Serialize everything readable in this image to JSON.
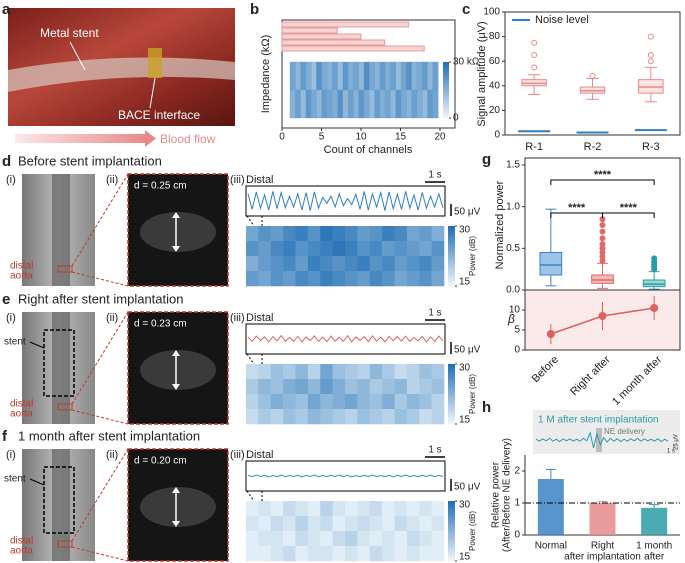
{
  "panel_labels": [
    "a",
    "b",
    "c",
    "d",
    "e",
    "f",
    "g",
    "h"
  ],
  "a": {
    "stent": "Metal stent",
    "interface": "BACE interface",
    "flow": "Blood flow"
  },
  "rows": [
    {
      "title": "Before stent implantation",
      "i": "(i)",
      "ii": "(ii)",
      "iii": "(iii)",
      "d": "d = 0.25 cm",
      "distal": "Distal",
      "time": "1 s",
      "amp": "50 μV",
      "aorta": [
        "distal",
        "aorta"
      ],
      "trace_color": "#2f7fc1",
      "trace": [
        30,
        -35,
        38,
        -30,
        25,
        -38,
        40,
        -32,
        35,
        -28,
        20,
        -25,
        30,
        -38,
        35,
        -40,
        38,
        -30,
        15,
        -10,
        20,
        -25,
        30,
        -20,
        10,
        -15,
        28,
        -35,
        40,
        -38,
        30,
        -25,
        35,
        -40,
        38,
        -32,
        28,
        -35,
        40,
        -30,
        25,
        -38,
        36,
        -30,
        20,
        -25,
        30,
        -28
      ],
      "clim": [
        15,
        30
      ],
      "cticks": [
        30,
        15
      ],
      "clabel": "Power (dB)",
      "heatmap": [
        [
          24,
          26,
          25,
          27,
          28,
          26,
          29,
          28,
          27,
          25,
          26,
          28,
          27,
          24,
          25,
          23
        ],
        [
          26,
          25,
          27,
          28,
          26,
          27,
          28,
          29,
          28,
          26,
          27,
          25,
          26,
          25,
          24,
          26
        ],
        [
          23,
          25,
          26,
          27,
          25,
          28,
          27,
          26,
          27,
          28,
          26,
          27,
          25,
          26,
          27,
          25
        ],
        [
          25,
          24,
          26,
          25,
          27,
          26,
          28,
          27,
          26,
          25,
          27,
          26,
          24,
          25,
          26,
          24
        ]
      ]
    },
    {
      "title": "Right after stent implantation",
      "i": "(i)",
      "ii": "(ii)",
      "iii": "(iii)",
      "d": "d = 0.23 cm",
      "distal": "Distal",
      "time": "1 s",
      "amp": "50 μV",
      "aorta": [
        "distal",
        "aorta"
      ],
      "stent": "stent",
      "trace_color": "#e06060",
      "trace": [
        8,
        -10,
        12,
        -6,
        9,
        -12,
        10,
        -8,
        14,
        -10,
        6,
        -9,
        11,
        -12,
        9,
        -7,
        13,
        -10,
        8,
        -11,
        12,
        -9,
        7,
        -10,
        14,
        -12,
        9,
        -6,
        10,
        -11,
        13,
        -9,
        8,
        -12,
        11,
        -7,
        10,
        -9,
        12,
        -10,
        6,
        -8,
        11,
        -12,
        9,
        -10,
        12,
        -8
      ],
      "clim": [
        15,
        30
      ],
      "cticks": [
        30,
        15
      ],
      "clabel": "Power (dB)",
      "heatmap": [
        [
          18,
          19,
          21,
          20,
          22,
          19,
          24,
          21,
          20,
          19,
          22,
          20,
          18,
          19,
          21,
          20
        ],
        [
          20,
          22,
          21,
          23,
          24,
          22,
          25,
          23,
          21,
          22,
          20,
          21,
          22,
          19,
          20,
          21
        ],
        [
          19,
          21,
          23,
          22,
          21,
          24,
          22,
          23,
          24,
          22,
          21,
          23,
          20,
          22,
          21,
          19
        ],
        [
          18,
          20,
          19,
          21,
          20,
          22,
          21,
          20,
          19,
          21,
          20,
          19,
          21,
          20,
          18,
          19
        ]
      ]
    },
    {
      "title": "1 month after stent implantation",
      "i": "(i)",
      "ii": "(ii)",
      "iii": "(iii)",
      "d": "d = 0.20 cm",
      "distal": "Distal",
      "time": "1 s",
      "amp": "50 μV",
      "aorta": [
        "distal",
        "aorta"
      ],
      "stent": "stent",
      "trace_color": "#2a9ca6",
      "trace": [
        3,
        -3,
        4,
        -2,
        3,
        -4,
        2,
        -3,
        4,
        -3,
        2,
        -2,
        3,
        -4,
        3,
        -2,
        4,
        -3,
        2,
        -3,
        3,
        -2,
        4,
        -3,
        3,
        -4,
        2,
        -3,
        3,
        -2,
        4,
        -3,
        2,
        -3,
        3,
        -4,
        3,
        -2,
        4,
        -3,
        2,
        -3,
        3,
        -2,
        4,
        -3,
        3,
        -2
      ],
      "clim": [
        15,
        30
      ],
      "cticks": [
        30,
        15
      ],
      "clabel": "Power (dB)",
      "heatmap": [
        [
          16,
          17,
          16,
          18,
          17,
          16,
          19,
          17,
          16,
          17,
          18,
          16,
          17,
          16,
          17,
          16
        ],
        [
          17,
          16,
          18,
          17,
          19,
          17,
          18,
          16,
          17,
          18,
          17,
          16,
          18,
          17,
          16,
          17
        ],
        [
          16,
          17,
          17,
          16,
          18,
          17,
          16,
          18,
          19,
          17,
          16,
          17,
          16,
          18,
          17,
          16
        ],
        [
          16,
          16,
          17,
          18,
          16,
          17,
          17,
          16,
          17,
          16,
          18,
          17,
          16,
          17,
          16,
          16
        ]
      ]
    }
  ],
  "chart_data": [
    {
      "type": "hbar",
      "values": [
        16,
        7,
        10,
        13,
        18
      ],
      "color": "#f7d4d4",
      "edge": "#e79c9c",
      "xlim": [
        0,
        20
      ],
      "xticks": [
        0,
        5,
        10,
        15,
        20
      ],
      "xlabel": "Count of channels",
      "ylabel": "Impedance (kΩ)"
    },
    {
      "type": "heatmap",
      "values": [
        [
          18,
          14,
          20,
          16,
          12,
          22,
          17,
          15,
          19,
          13,
          21,
          16,
          18,
          14,
          23,
          17,
          15,
          20,
          16,
          19,
          13,
          18,
          22,
          15,
          17,
          20,
          14,
          19
        ],
        [
          15,
          19,
          13,
          21,
          17,
          14,
          20,
          18,
          16,
          22,
          14,
          19,
          15,
          21,
          17,
          13,
          20,
          16,
          18,
          14,
          21,
          17,
          15,
          19,
          16,
          13,
          20,
          18
        ]
      ],
      "clim": [
        0,
        30
      ],
      "cticks": [
        {
          "value": 30,
          "label": "30 kΩ"
        },
        0
      ]
    },
    {
      "type": "box",
      "categories": [
        "R-1",
        "R-2",
        "R-3"
      ],
      "color": "#e88a8a",
      "fill": "#fbe3e3",
      "boxes": [
        {
          "min": 33,
          "q1": 40,
          "median": 42,
          "q3": 45,
          "max": 49,
          "outliers": [
            55,
            65,
            75
          ]
        },
        {
          "min": 29,
          "q1": 34,
          "median": 36,
          "q3": 39,
          "max": 46,
          "outliers": [
            48
          ]
        },
        {
          "min": 27,
          "q1": 34,
          "median": 39,
          "q3": 45,
          "max": 55,
          "outliers": [
            60,
            65,
            80
          ]
        }
      ],
      "noise": {
        "name": "Noise level",
        "color": "#2f7fc1",
        "values": [
          3,
          2,
          4
        ]
      },
      "ylim": [
        0,
        100
      ],
      "yticks": [
        0,
        20,
        40,
        60,
        80,
        100
      ],
      "ylabel": "Signal amplitude (μV)"
    },
    {
      "type": "box",
      "categories": [
        "Before",
        "Right after",
        "1 month after"
      ],
      "colors": [
        "#3b82c4",
        "#e06a6a",
        "#2a9ca6"
      ],
      "fills": [
        "#9cc4e8",
        "#f4b8b8",
        "#9fd5d9"
      ],
      "boxes": [
        {
          "min": 0.05,
          "q1": 0.18,
          "median": 0.3,
          "q3": 0.45,
          "max": 0.97,
          "outliers": []
        },
        {
          "min": 0.02,
          "q1": 0.08,
          "median": 0.12,
          "q3": 0.18,
          "max": 0.32,
          "outliers": [
            0.35,
            0.4,
            0.45,
            0.5,
            0.55,
            0.62,
            0.7,
            0.78,
            0.85
          ]
        },
        {
          "min": 0.01,
          "q1": 0.04,
          "median": 0.07,
          "q3": 0.12,
          "max": 0.22,
          "outliers": [
            0.25,
            0.28,
            0.31,
            0.34,
            0.38
          ]
        }
      ],
      "significance": [
        "****",
        "****",
        "****"
      ],
      "ylim": [
        0,
        1.5
      ],
      "yticks": [
        {
          "value": 0,
          "label": "0.0"
        },
        {
          "value": 0.5,
          "label": "0.5"
        },
        {
          "value": 1,
          "label": "1.0"
        },
        {
          "value": 1.5,
          "label": "1.5"
        }
      ],
      "ylabel": "Normalized power"
    },
    {
      "type": "errline",
      "categories": [
        "Before",
        "Right after",
        "1 month after"
      ],
      "values": [
        4,
        8.5,
        10.5
      ],
      "errors": [
        2.5,
        3.5,
        3
      ],
      "color": "#e06060",
      "background": "#fbeaea",
      "ylim": [
        0,
        15
      ],
      "yticks": [
        0,
        5,
        10
      ],
      "ylabel": "β"
    },
    {
      "type": "bar",
      "categories": [
        [
          "Normal"
        ],
        [
          "Right",
          "after implantation"
        ],
        [
          "1 month",
          "after"
        ]
      ],
      "values": [
        1.75,
        1.0,
        0.85
      ],
      "errors": [
        0.3,
        0.05,
        0.1
      ],
      "colors": [
        "#3b82c4",
        "#e88a8a",
        "#2a9ca6"
      ],
      "reference": 1,
      "ylim": [
        0,
        2.5
      ],
      "yticks": [
        0,
        1,
        2
      ],
      "ylabel": [
        "Relative power",
        "(After/Before NE delivery)"
      ],
      "inset": {
        "title": "1 M after stent implantation",
        "annotation": "NE delivery",
        "time": "1 s",
        "amp": "25 μV",
        "trace": [
          2,
          -3,
          3,
          -2,
          4,
          -3,
          2,
          -4,
          3,
          -2,
          3,
          -3,
          2,
          -3,
          4,
          -2,
          18,
          -20,
          15,
          -12,
          6,
          -5,
          4,
          -3,
          3,
          -4,
          2,
          -3,
          3,
          -2,
          4,
          -3,
          3,
          -2,
          2,
          -3,
          3,
          -4,
          2,
          -3
        ]
      }
    }
  ]
}
